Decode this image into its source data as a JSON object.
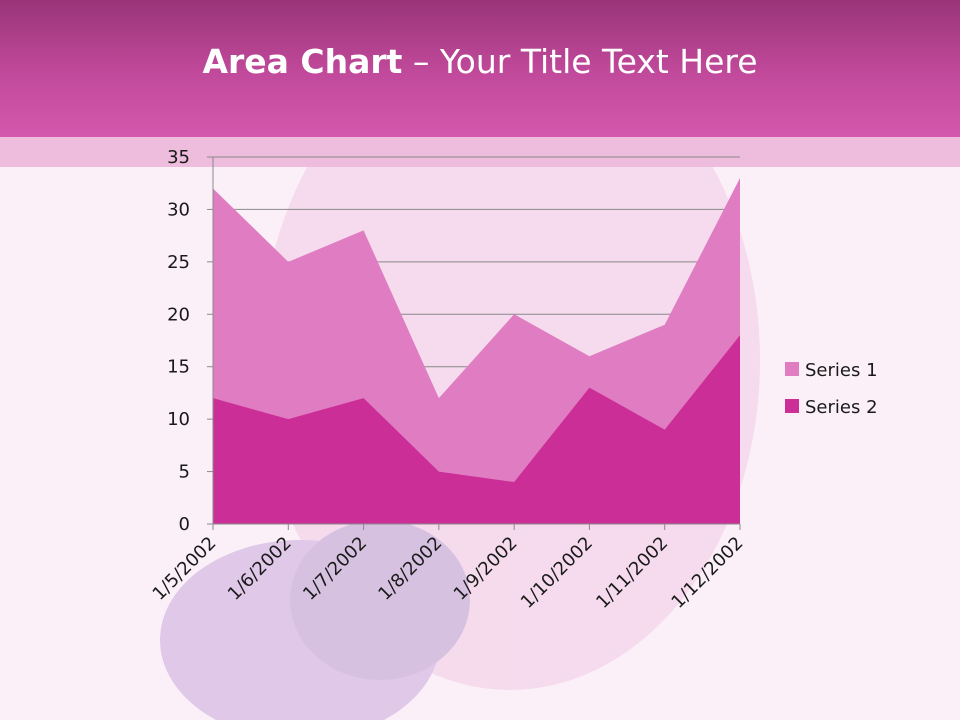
{
  "slide": {
    "title_bold": "Area Chart",
    "title_rest": " – Your Title Text Here"
  },
  "colors": {
    "series1": "#e07cc1",
    "series2": "#cc2e98",
    "header": "#c24a9c"
  },
  "chart_data": {
    "type": "area",
    "categories": [
      "1/5/2002",
      "1/6/2002",
      "1/7/2002",
      "1/8/2002",
      "1/9/2002",
      "1/10/2002",
      "1/11/2002",
      "1/12/2002"
    ],
    "series": [
      {
        "name": "Series 1",
        "values": [
          32,
          25,
          28,
          12,
          20,
          16,
          19,
          33
        ]
      },
      {
        "name": "Series 2",
        "values": [
          12,
          10,
          12,
          5,
          4,
          13,
          9,
          18
        ]
      }
    ],
    "ylim": [
      0,
      35
    ],
    "yticks": [
      0,
      5,
      10,
      15,
      20,
      25,
      30,
      35
    ],
    "grid": true,
    "legend": "right"
  }
}
